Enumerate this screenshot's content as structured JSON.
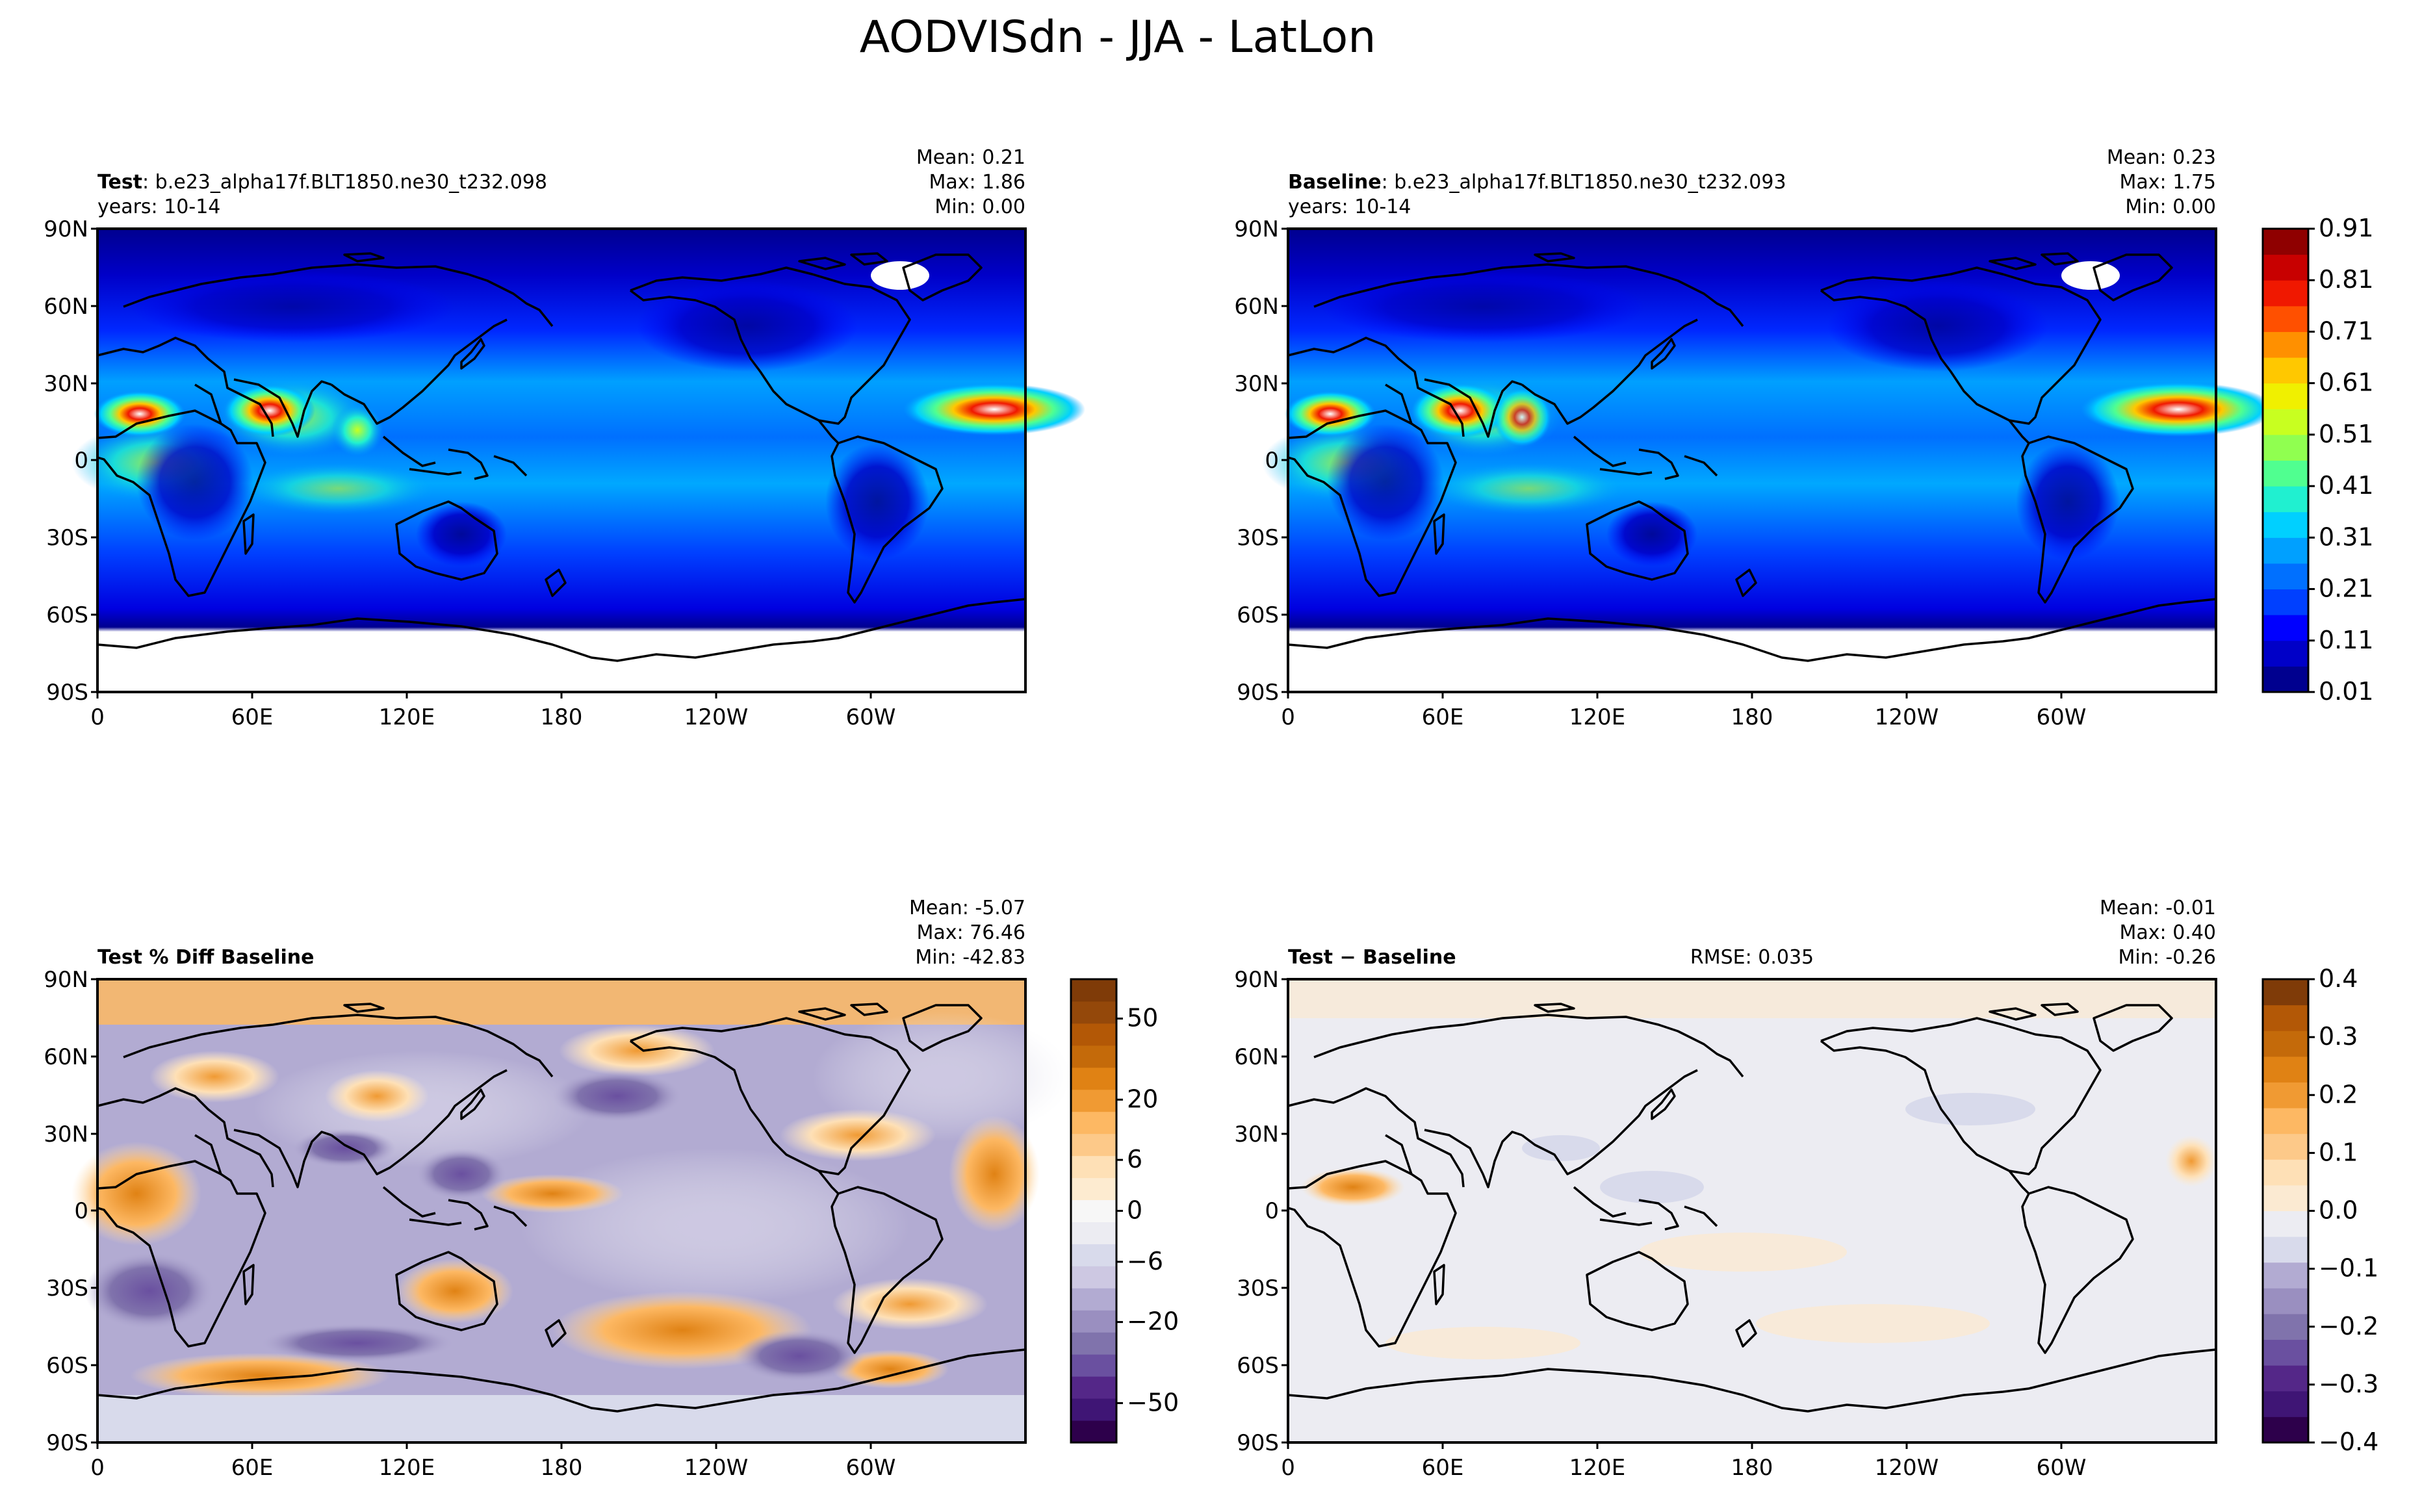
{
  "figure": {
    "title": "AODVISdn - JJA - LatLon"
  },
  "axes": {
    "x_ticks": [
      "0",
      "60E",
      "120E",
      "180",
      "120W",
      "60W"
    ],
    "y_ticks": [
      "90N",
      "60N",
      "30N",
      "0",
      "30S",
      "60S",
      "90S"
    ]
  },
  "panels": {
    "test": {
      "label_bold": "Test",
      "label_rest": ": b.e23_alpha17f.BLT1850.ne30_t232.098",
      "years": "years: 10-14",
      "stats": {
        "mean": "Mean:  0.21",
        "max": "Max:  1.86",
        "min": "Min:  0.00"
      }
    },
    "baseline": {
      "label_bold": "Baseline",
      "label_rest": ": b.e23_alpha17f.BLT1850.ne30_t232.093",
      "years": "years: 10-14",
      "stats": {
        "mean": "Mean:  0.23",
        "max": "Max:  1.75",
        "min": "Min:  0.00"
      }
    },
    "pctdiff": {
      "label_bold": "Test % Diff Baseline",
      "stats": {
        "mean": "Mean: -5.07",
        "max": "Max: 76.46",
        "min": "Min: -42.83"
      }
    },
    "diff": {
      "label_bold": "Test − Baseline",
      "rmse": "RMSE: 0.035",
      "stats": {
        "mean": "Mean: -0.01",
        "max": "Max:  0.40",
        "min": "Min: -0.26"
      }
    }
  },
  "colorbars": {
    "aod": {
      "ticks": [
        "0.01",
        "0.11",
        "0.21",
        "0.31",
        "0.41",
        "0.51",
        "0.61",
        "0.71",
        "0.81",
        "0.91"
      ],
      "colors": [
        "#00008f",
        "#0000c8",
        "#0000ff",
        "#0040ff",
        "#0070ff",
        "#00a0ff",
        "#00d0ff",
        "#20f0d0",
        "#50ff90",
        "#90ff50",
        "#c8ff20",
        "#f0f000",
        "#ffc800",
        "#ff9000",
        "#ff5000",
        "#f01800",
        "#c80000",
        "#8f0000"
      ]
    },
    "pctdiff": {
      "ticks": [
        "50",
        "20",
        "6",
        "0",
        "−6",
        "−20",
        "−50"
      ],
      "colors": [
        "#2d004b",
        "#3f1575",
        "#542788",
        "#6a50a0",
        "#8073ac",
        "#9a8fc0",
        "#b2abd2",
        "#cdc8e2",
        "#d8daeb",
        "#ececf2",
        "#f7f7f7",
        "#fdebd0",
        "#fee0b6",
        "#fdc989",
        "#fdb863",
        "#f09a33",
        "#e08214",
        "#c46a0a",
        "#b35806",
        "#94480a",
        "#7f3b08"
      ]
    },
    "diff": {
      "ticks": [
        "0.4",
        "0.3",
        "0.2",
        "0.1",
        "0.0",
        "−0.1",
        "−0.2",
        "−0.3",
        "−0.4"
      ],
      "colors": [
        "#2d004b",
        "#3f1575",
        "#542788",
        "#6a50a0",
        "#8073ac",
        "#9a8fc0",
        "#b2abd2",
        "#d8daeb",
        "#ececf2",
        "#fbead2",
        "#fee0b6",
        "#fdc989",
        "#fdb863",
        "#f09a33",
        "#e08214",
        "#c46a0a",
        "#b35806",
        "#7f3b08"
      ]
    }
  },
  "chart_data": [
    {
      "type": "heatmap",
      "title": "Test: b.e23_alpha17f.BLT1850.ne30_t232.098",
      "x_ticks": [
        "0",
        "60E",
        "120E",
        "180",
        "120W",
        "60W"
      ],
      "y_ticks": [
        "90N",
        "60N",
        "30N",
        "0",
        "30S",
        "60S",
        "90S"
      ],
      "stats": {
        "mean": 0.21,
        "max": 1.86,
        "min": 0.0
      },
      "colorbar_range": [
        0.01,
        0.91
      ]
    },
    {
      "type": "heatmap",
      "title": "Baseline: b.e23_alpha17f.BLT1850.ne30_t232.093",
      "x_ticks": [
        "0",
        "60E",
        "120E",
        "180",
        "120W",
        "60W"
      ],
      "y_ticks": [
        "90N",
        "60N",
        "30N",
        "0",
        "30S",
        "60S",
        "90S"
      ],
      "stats": {
        "mean": 0.23,
        "max": 1.75,
        "min": 0.0
      },
      "colorbar_range": [
        0.01,
        0.91
      ]
    },
    {
      "type": "heatmap",
      "title": "Test % Diff Baseline",
      "stats": {
        "mean": -5.07,
        "max": 76.46,
        "min": -42.83
      },
      "colorbar_ticks": [
        50,
        20,
        6,
        0,
        -6,
        -20,
        -50
      ]
    },
    {
      "type": "heatmap",
      "title": "Test − Baseline",
      "rmse": 0.035,
      "stats": {
        "mean": -0.01,
        "max": 0.4,
        "min": -0.26
      },
      "colorbar_range": [
        -0.4,
        0.4
      ]
    }
  ]
}
